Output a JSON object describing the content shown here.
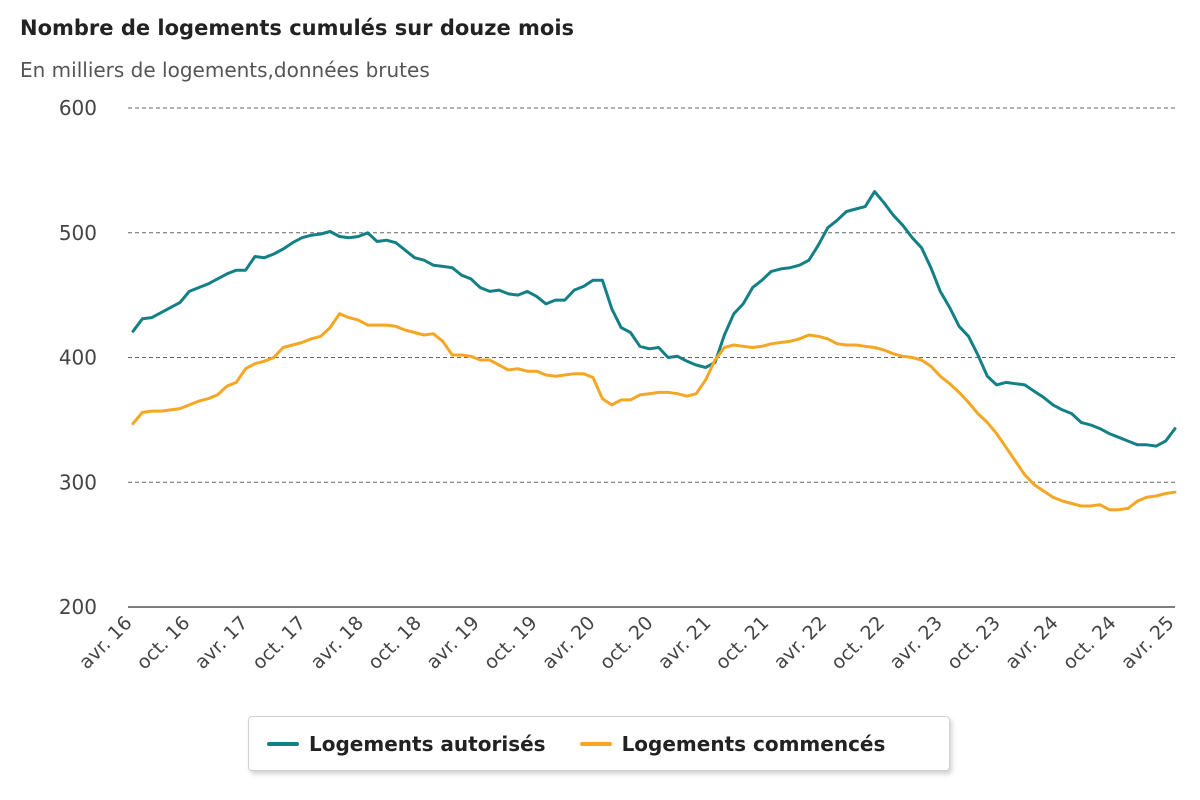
{
  "chart_data": {
    "type": "line",
    "title": "Nombre de logements cumulés sur douze mois",
    "subtitle": "En milliers de logements,données brutes",
    "ylim": [
      200,
      600
    ],
    "y_ticks": [
      "600",
      "500",
      "400",
      "300",
      "200"
    ],
    "grid": "horizontal dashed",
    "legend_position": "bottom",
    "x_tick_labels": [
      "avr. 16",
      "oct. 16",
      "avr. 17",
      "oct. 17",
      "avr. 18",
      "oct. 18",
      "avr. 19",
      "oct. 19",
      "avr. 20",
      "oct. 20",
      "avr. 21",
      "oct. 21",
      "avr. 22",
      "oct. 22",
      "avr. 23",
      "oct. 23",
      "avr. 24",
      "oct. 24",
      "avr. 25"
    ],
    "x_start": "avr. 16",
    "x_end": "avr. 25",
    "series": [
      {
        "name": "Logements autorisés",
        "color": "#138086",
        "values": [
          421,
          431,
          432,
          436,
          440,
          444,
          453,
          456,
          459,
          463,
          467,
          470,
          470,
          481,
          480,
          483,
          487,
          492,
          496,
          498,
          499,
          501,
          497,
          496,
          497,
          500,
          493,
          494,
          492,
          486,
          480,
          478,
          474,
          473,
          472,
          466,
          463,
          456,
          453,
          454,
          451,
          450,
          453,
          449,
          443,
          446,
          446,
          454,
          457,
          462,
          462,
          439,
          424,
          420,
          409,
          407,
          408,
          400,
          401,
          397,
          394,
          392,
          396,
          418,
          435,
          443,
          456,
          462,
          469,
          471,
          472,
          474,
          478,
          490,
          504,
          510,
          517,
          519,
          521,
          533,
          524,
          514,
          506,
          496,
          488,
          472,
          453,
          440,
          425,
          417,
          402,
          385,
          378,
          380,
          379,
          378,
          373,
          368,
          362,
          358,
          355,
          348,
          346,
          343,
          339,
          336,
          333,
          330,
          330,
          329,
          333,
          343
        ]
      },
      {
        "name": "Logements commencés",
        "color": "#F5A623",
        "values": [
          347,
          356,
          357,
          357,
          358,
          359,
          362,
          365,
          367,
          370,
          377,
          380,
          391,
          395,
          397,
          400,
          408,
          410,
          412,
          415,
          417,
          424,
          435,
          432,
          430,
          426,
          426,
          426,
          425,
          422,
          420,
          418,
          419,
          413,
          402,
          402,
          401,
          398,
          398,
          394,
          390,
          391,
          389,
          389,
          386,
          385,
          386,
          387,
          387,
          384,
          367,
          362,
          366,
          366,
          370,
          371,
          372,
          372,
          371,
          369,
          371,
          382,
          398,
          408,
          410,
          409,
          408,
          409,
          411,
          412,
          413,
          415,
          418,
          417,
          415,
          411,
          410,
          410,
          409,
          408,
          406,
          403,
          401,
          400,
          398,
          393,
          385,
          379,
          372,
          364,
          355,
          348,
          339,
          328,
          317,
          306,
          298,
          293,
          288,
          285,
          283,
          281,
          281,
          282,
          278,
          278,
          279,
          285,
          288,
          289,
          291,
          292
        ]
      }
    ]
  }
}
